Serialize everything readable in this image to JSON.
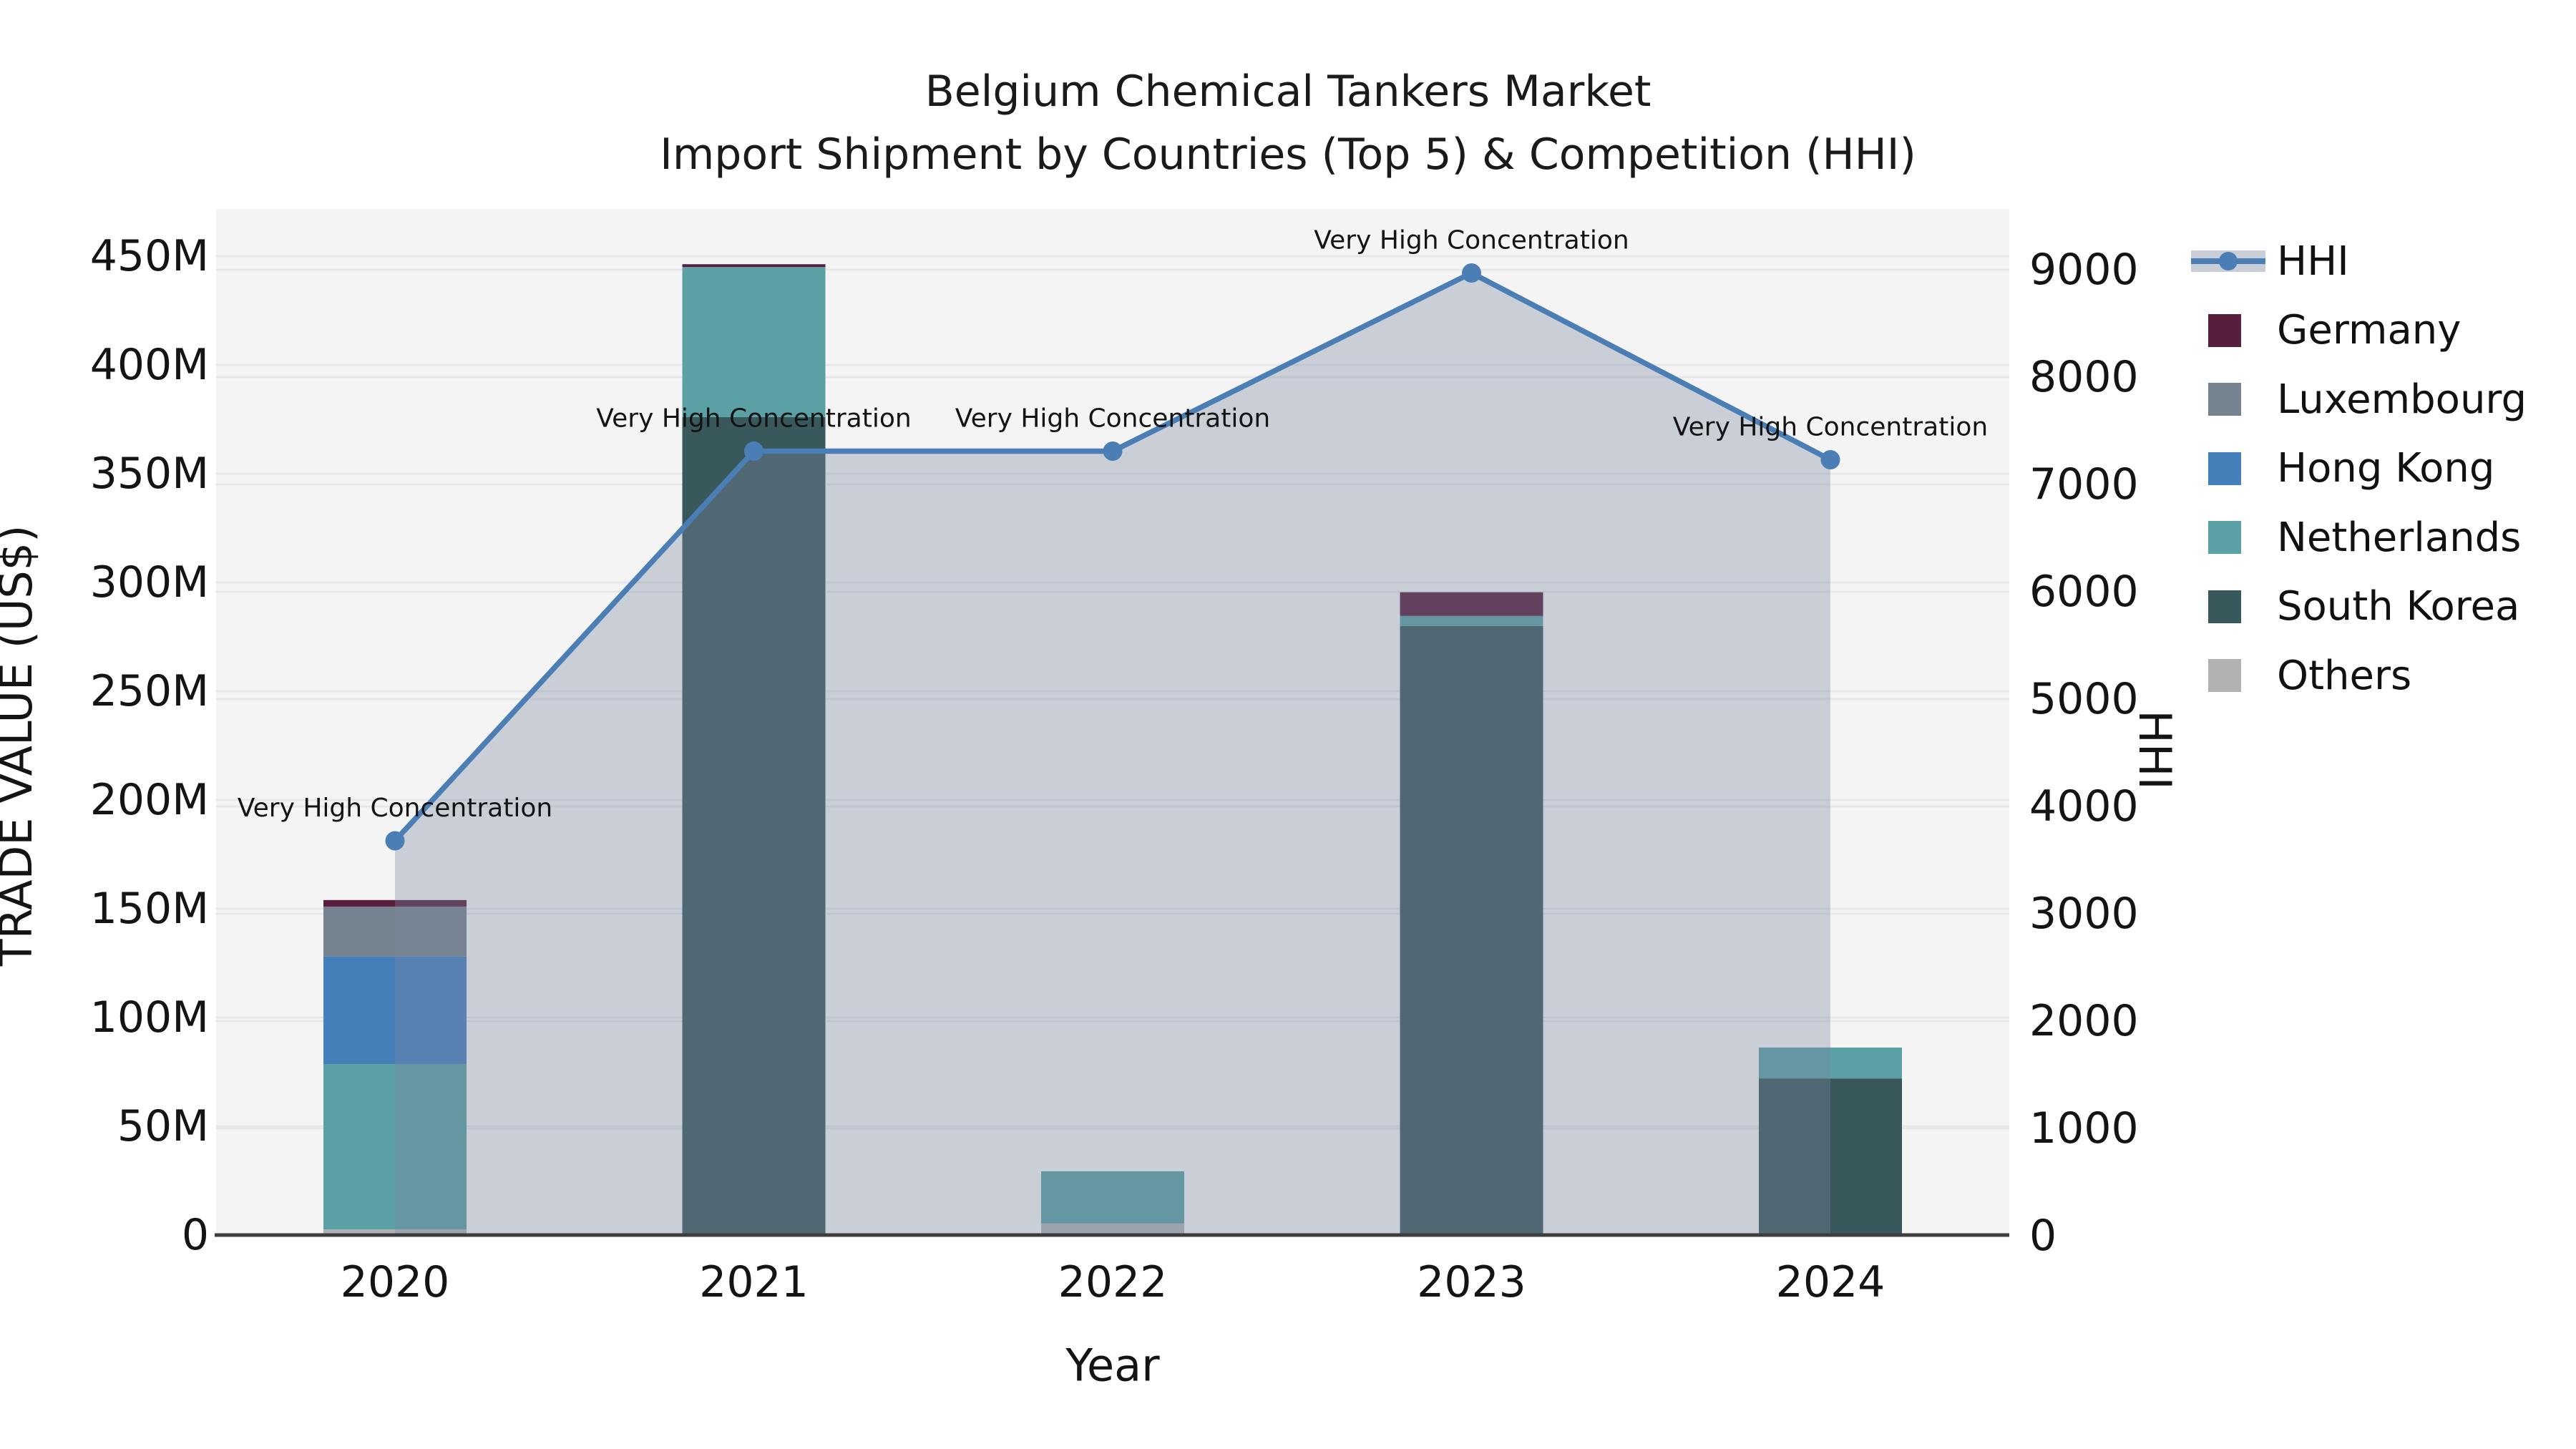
{
  "title": {
    "line1": "Belgium Chemical Tankers Market",
    "line2": "Import Shipment by Countries (Top 5) & Competition (HHI)"
  },
  "chart_data": {
    "type": "combo_stacked_bar_line",
    "title": "Belgium Chemical Tankers Market",
    "subtitle": "Import Shipment by Countries (Top 5) & Competition (HHI)",
    "xlabel": "Year",
    "categories": [
      "2020",
      "2021",
      "2022",
      "2023",
      "2024"
    ],
    "y_left": {
      "title": "TRADE VALUE (US$)",
      "unit": "millions US$",
      "range": [
        0,
        450
      ],
      "tick_values": [
        0,
        50,
        100,
        150,
        200,
        250,
        300,
        350,
        400,
        450
      ],
      "tick_labels": [
        "0",
        "50M",
        "100M",
        "150M",
        "200M",
        "250M",
        "300M",
        "350M",
        "400M",
        "450M"
      ]
    },
    "y_right": {
      "title": "HHI",
      "range": [
        0,
        9000
      ],
      "tick_values": [
        0,
        1000,
        2000,
        3000,
        4000,
        5000,
        6000,
        7000,
        8000,
        9000
      ],
      "tick_labels": [
        "0",
        "1000",
        "2000",
        "3000",
        "4000",
        "5000",
        "6000",
        "7000",
        "8000",
        "9000"
      ]
    },
    "bar_series_stack_bottom_to_top": [
      {
        "name": "Others",
        "color": "#b0b2b4",
        "values_musd": [
          2.6,
          0,
          5.3,
          0,
          0
        ]
      },
      {
        "name": "South Korea",
        "color": "#39585c",
        "values_musd": [
          0,
          376,
          0,
          280,
          72
        ]
      },
      {
        "name": "Netherlands",
        "color": "#5aa0a4",
        "values_musd": [
          76,
          69,
          24,
          4.6,
          14.2
        ]
      },
      {
        "name": "Hong Kong",
        "color": "#4580ba",
        "values_musd": [
          49.4,
          0,
          0,
          0,
          0
        ]
      },
      {
        "name": "Luxembourg",
        "color": "#75828f",
        "values_musd": [
          23,
          0,
          0,
          0,
          0
        ]
      },
      {
        "name": "Germany",
        "color": "#581e3d",
        "values_musd": [
          3,
          1.3,
          0,
          10.9,
          0
        ]
      }
    ],
    "line_series": {
      "name": "HHI",
      "color": "#4a7eb4",
      "area_color": "rgba(120,134,161,0.35)",
      "values": [
        3680,
        7310,
        7310,
        8970,
        7230
      ],
      "point_labels": [
        "Very High Concentration",
        "Very High Concentration",
        "Very High Concentration",
        "Very High Concentration",
        "Very High Concentration"
      ]
    },
    "legend": [
      {
        "label": "HHI",
        "swatch": "line",
        "color": "#4a7eb4"
      },
      {
        "label": "Germany",
        "swatch": "square",
        "color": "#581e3d"
      },
      {
        "label": "Luxembourg",
        "swatch": "square",
        "color": "#75828f"
      },
      {
        "label": "Hong Kong",
        "swatch": "square",
        "color": "#4580ba"
      },
      {
        "label": "Netherlands",
        "swatch": "square",
        "color": "#5aa0a4"
      },
      {
        "label": "South Korea",
        "swatch": "square",
        "color": "#39585c"
      },
      {
        "label": "Others",
        "swatch": "square",
        "color": "#b0b2b4"
      }
    ],
    "style": {
      "plot_bg": "#f4f4f5",
      "grid": "#e5e6e8",
      "baseline": "#3d3d3d",
      "grid_on": true,
      "legend_position": "right"
    }
  }
}
